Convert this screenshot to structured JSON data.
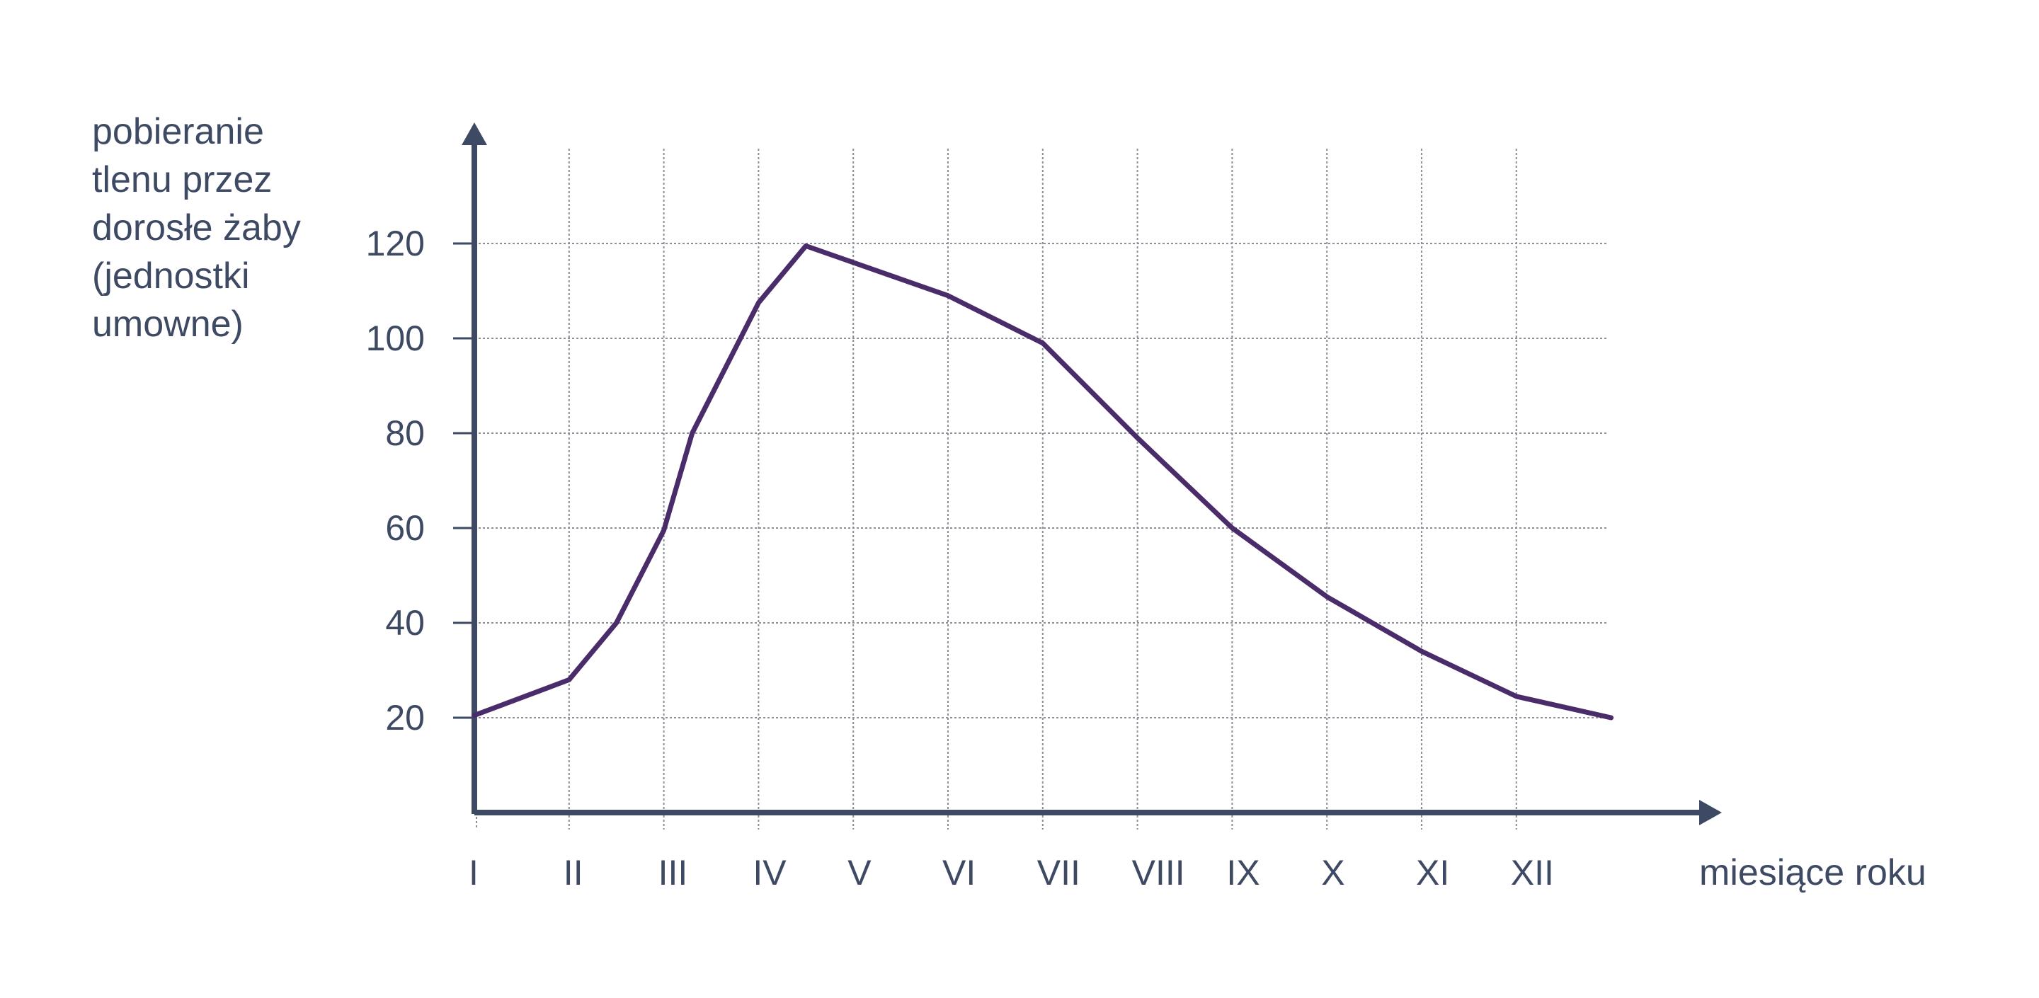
{
  "chart_data": {
    "type": "line",
    "ylabel_lines": [
      "pobieranie",
      "tlenu przez",
      "dorosłe żaby",
      "(jednostki",
      "umowne)"
    ],
    "xlabel": "miesiące roku",
    "categories": [
      "I",
      "II",
      "III",
      "IV",
      "V",
      "VI",
      "VII",
      "VIII",
      "IX",
      "X",
      "XI",
      "XII"
    ],
    "yticks": [
      20,
      40,
      60,
      80,
      100,
      120
    ],
    "ylim": [
      0,
      140
    ],
    "xlim": [
      0,
      12
    ],
    "grid": true,
    "series": [
      {
        "color": "#4a2c6a",
        "points": [
          {
            "x": 0,
            "y": 20.5
          },
          {
            "x": 1,
            "y": 28
          },
          {
            "x": 1.5,
            "y": 40
          },
          {
            "x": 2,
            "y": 59.5
          },
          {
            "x": 2.3,
            "y": 80
          },
          {
            "x": 3,
            "y": 107.5
          },
          {
            "x": 3.5,
            "y": 119.5
          },
          {
            "x": 5,
            "y": 109
          },
          {
            "x": 6,
            "y": 99
          },
          {
            "x": 7,
            "y": 79
          },
          {
            "x": 8,
            "y": 60
          },
          {
            "x": 9,
            "y": 45.5
          },
          {
            "x": 10,
            "y": 34
          },
          {
            "x": 11,
            "y": 24.5
          },
          {
            "x": 12,
            "y": 20
          }
        ]
      }
    ],
    "colors": {
      "axis": "#3e4a63",
      "grid": "#8a8f98",
      "text": "#3e4a63"
    }
  }
}
